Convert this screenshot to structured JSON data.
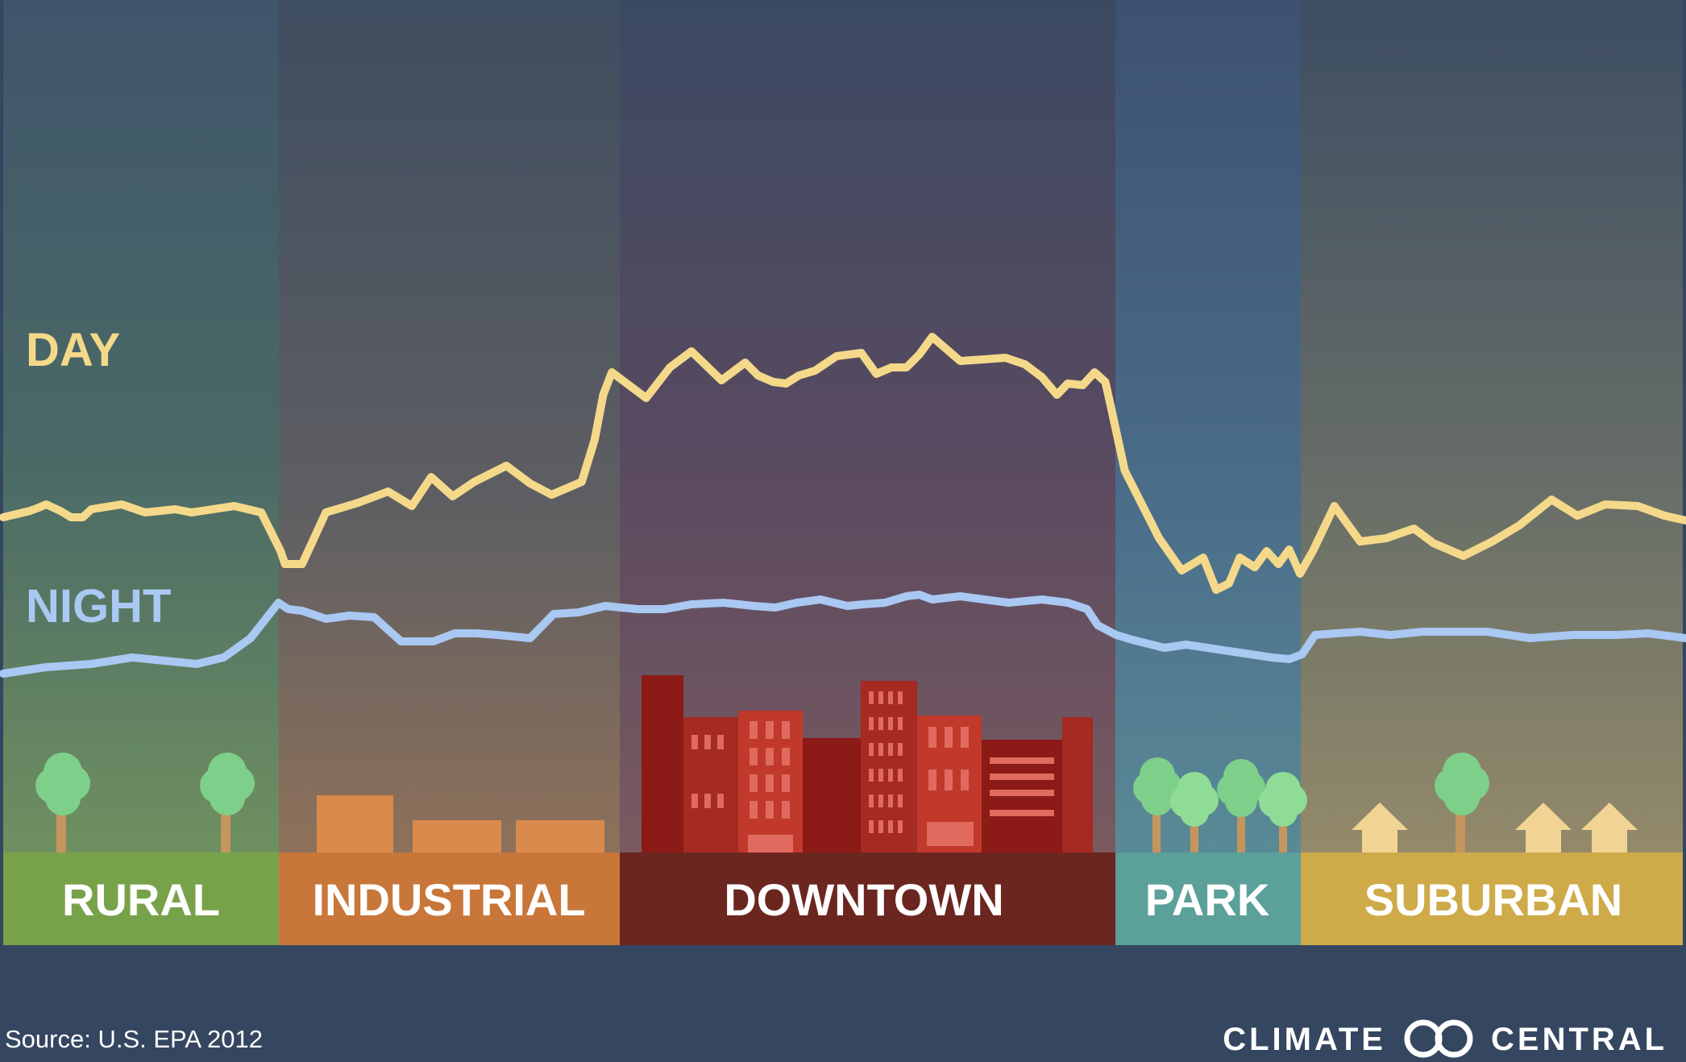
{
  "zones": [
    {
      "key": "rural",
      "label": "RURAL",
      "color": "#78a24a"
    },
    {
      "key": "industrial",
      "label": "INDUSTRIAL",
      "color": "#c87639"
    },
    {
      "key": "downtown",
      "label": "DOWNTOWN",
      "color": "#6b2620"
    },
    {
      "key": "park",
      "label": "PARK",
      "color": "#5ba099"
    },
    {
      "key": "suburban",
      "label": "SUBURBAN",
      "color": "#ceaa49"
    }
  ],
  "labels": {
    "day": "DAY",
    "night": "NIGHT"
  },
  "colors": {
    "background": "#354660",
    "day": "#f5d98a",
    "night": "#a9c8f2"
  },
  "footer": {
    "source": "Source: U.S. EPA 2012",
    "brand_left": "CLIMATE",
    "brand_right": "CENTRAL"
  },
  "chart_data": {
    "type": "line",
    "title": "",
    "xlabel": "",
    "ylabel": "",
    "grid": false,
    "legend": "inline-left",
    "categories": [
      "RURAL",
      "INDUSTRIAL",
      "DOWNTOWN",
      "PARK",
      "SUBURBAN"
    ],
    "series": [
      {
        "name": "DAY",
        "x": [
          0,
          25,
          33,
          40,
          53,
          63,
          74,
          82,
          110,
          132,
          160,
          175,
          215,
          240,
          258,
          262,
          278,
          300,
          330,
          358,
          380,
          398,
          418,
          438,
          468,
          490,
          510,
          538,
          550,
          558,
          566,
          598,
          620,
          640,
          668,
          690,
          702,
          716,
          728,
          740,
          755,
          775,
          798,
          812,
          826,
          840,
          852,
          864,
          890,
          912,
          932,
          950,
          966,
          980,
          990,
          1004,
          1015,
          1025,
          1030,
          1043,
          1075,
          1096,
          1116,
          1128,
          1140,
          1150,
          1164,
          1175,
          1186,
          1196,
          1206,
          1218,
          1238,
          1262,
          1286,
          1312,
          1330,
          1358,
          1385,
          1410,
          1440,
          1464,
          1490,
          1520,
          1545,
          1565
        ],
        "y": [
          48.5,
          50.5,
          51.5,
          52.5,
          50.5,
          48.5,
          48.5,
          51,
          52.5,
          50,
          51,
          50,
          52,
          50,
          38,
          34,
          34,
          50,
          53,
          56.5,
          52,
          61,
          55,
          59.5,
          64.5,
          59,
          55.5,
          59.5,
          72.5,
          86.5,
          93.5,
          85.5,
          95,
          100,
          91,
          96.5,
          92.5,
          90.5,
          90,
          92.5,
          94,
          98.5,
          99.5,
          93,
          95,
          95,
          99,
          104.5,
          97,
          97.5,
          98,
          96,
          92,
          86.5,
          90,
          89.5,
          93.5,
          90.5,
          83,
          63,
          42,
          32,
          36,
          26,
          28,
          36,
          33,
          38,
          34,
          38.5,
          31,
          38,
          52,
          41,
          42,
          45,
          40.5,
          36.5,
          41,
          46,
          54,
          49,
          52.5,
          52,
          49,
          47.5
        ]
      },
      {
        "name": "NIGHT",
        "x": [
          0,
          40,
          82,
          120,
          180,
          205,
          230,
          256,
          265,
          278,
          300,
          322,
          345,
          370,
          400,
          420,
          440,
          460,
          490,
          512,
          535,
          560,
          590,
          615,
          640,
          670,
          698,
          718,
          738,
          760,
          785,
          800,
          820,
          840,
          852,
          864,
          890,
          935,
          966,
          990,
          1008,
          1018,
          1035,
          1050,
          1080,
          1100,
          1120,
          1140,
          1160,
          1180,
          1196,
          1208,
          1220,
          1240,
          1262,
          1290,
          1320,
          1350,
          1380,
          1420,
          1460,
          1500,
          1530,
          1565
        ],
        "y": [
          0,
          2,
          3,
          5,
          3,
          5,
          11,
          22,
          20,
          19.5,
          17,
          18,
          17.5,
          10,
          10,
          12.5,
          12.5,
          12,
          11,
          18.5,
          19,
          21,
          20,
          20,
          21.5,
          22,
          21,
          20.5,
          22,
          23,
          21,
          21.5,
          22,
          24,
          24.5,
          23,
          24,
          22,
          23,
          22,
          20,
          15,
          12,
          10.5,
          8,
          9,
          8,
          7,
          6,
          5,
          4.5,
          6,
          12,
          12.5,
          13,
          12,
          13,
          13,
          13,
          11,
          12,
          12,
          12.5,
          11
        ]
      }
    ]
  }
}
